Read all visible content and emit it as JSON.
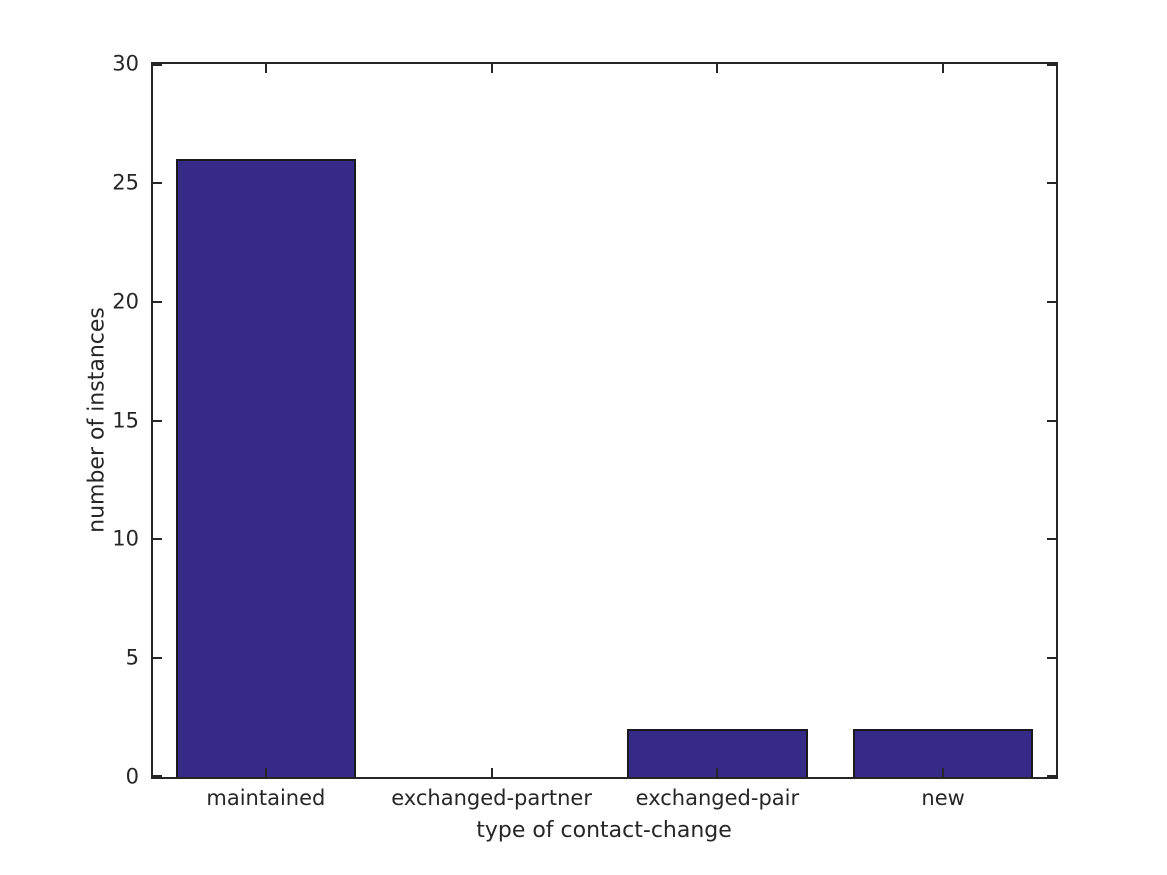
{
  "chart_data": {
    "type": "bar",
    "title": "",
    "xlabel": "type of contact-change",
    "ylabel": "number of instances",
    "categories": [
      "maintained",
      "exchanged-partner",
      "exchanged-pair",
      "new"
    ],
    "values": [
      26,
      0,
      2,
      2
    ],
    "ylim": [
      0,
      30
    ],
    "yticks": [
      0,
      5,
      10,
      15,
      20,
      25,
      30
    ],
    "bar_width_frac": 0.8,
    "grid": false,
    "box": true,
    "tick_direction": "in",
    "tick_sides": "all",
    "legend": "none",
    "colors": {
      "bar_fill": "#352a87",
      "bar_edge": "#1a1a1a",
      "axis": "#262626",
      "text": "#262626",
      "background": "#ffffff"
    }
  }
}
